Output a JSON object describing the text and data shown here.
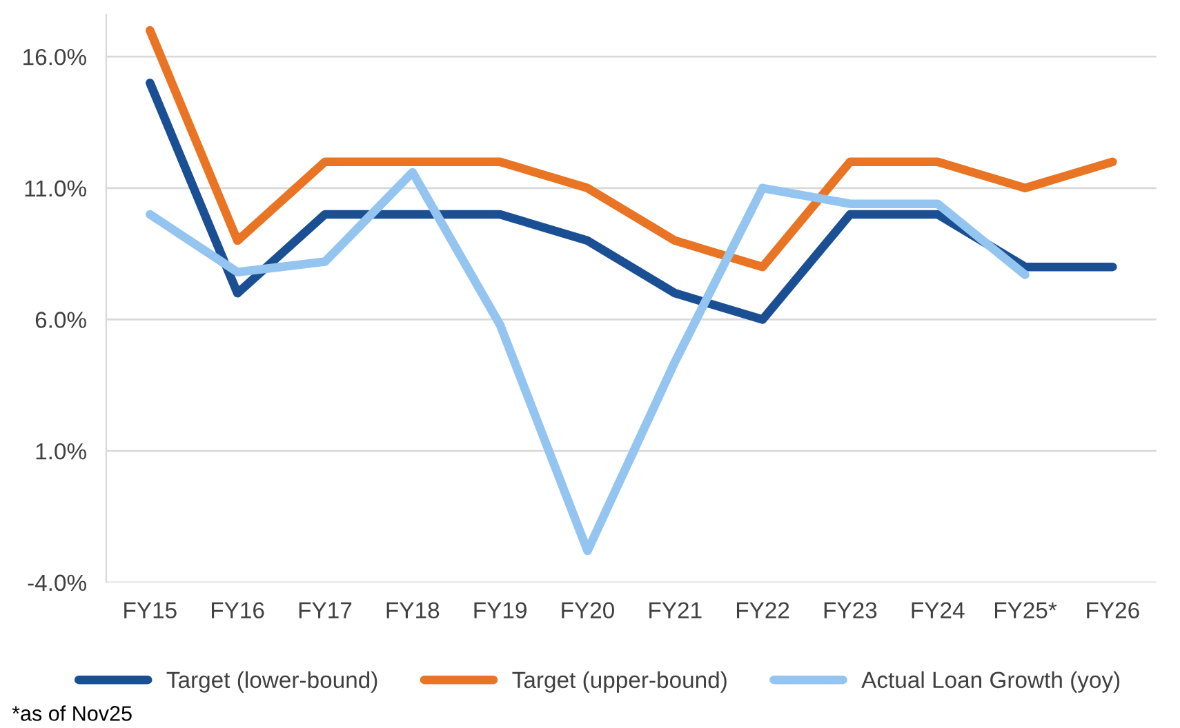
{
  "chart_data": {
    "type": "line",
    "categories": [
      "FY15",
      "FY16",
      "FY17",
      "FY18",
      "FY19",
      "FY20",
      "FY21",
      "FY22",
      "FY23",
      "FY24",
      "FY25*",
      "FY26"
    ],
    "series": [
      {
        "name": "Target (lower-bound)",
        "color": "#1b4f93",
        "values": [
          15,
          7,
          10,
          10,
          10,
          9,
          7,
          6,
          10,
          10,
          8,
          8
        ]
      },
      {
        "name": "Target (upper-bound)",
        "color": "#e97424",
        "values": [
          17,
          9,
          12,
          12,
          12,
          11,
          9,
          8,
          12,
          12,
          11,
          12
        ]
      },
      {
        "name": "Actual Loan Growth (yoy)",
        "color": "#94c5f0",
        "values": [
          10.0,
          7.8,
          8.2,
          11.6,
          5.8,
          -2.8,
          4.4,
          11.0,
          10.4,
          10.4,
          7.7,
          null
        ]
      }
    ],
    "ylim": [
      -4,
      17.6
    ],
    "yticks": [
      {
        "value": -4,
        "label": "-4.0%"
      },
      {
        "value": 1,
        "label": "1.0%"
      },
      {
        "value": 6,
        "label": "6.0%"
      },
      {
        "value": 11,
        "label": "11.0%"
      },
      {
        "value": 16,
        "label": "16.0%"
      }
    ],
    "grid": "y",
    "legend": "bottom",
    "marker": "none",
    "line_style": "solid",
    "annotations": [
      "*as of Nov25"
    ]
  }
}
